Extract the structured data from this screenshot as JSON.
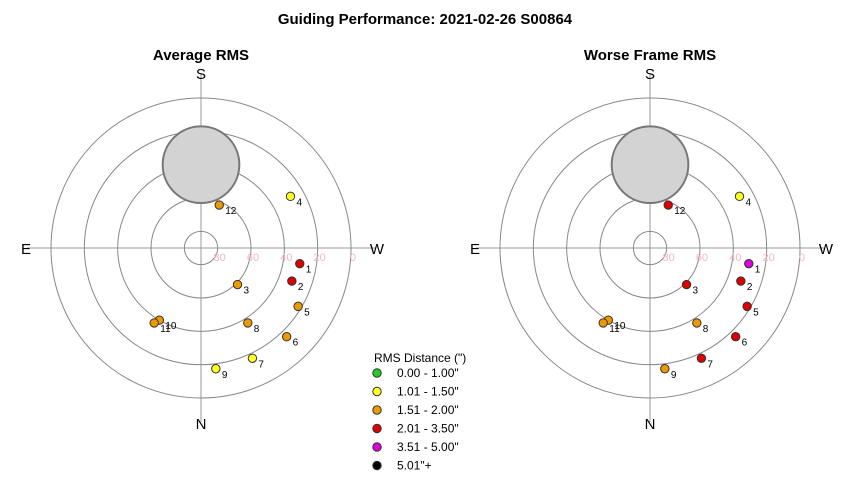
{
  "title": "Guiding Performance: 2021-02-26 S00864",
  "legend": {
    "title": "RMS Distance (\")",
    "entries": [
      {
        "label": "0.00 - 1.00\"",
        "color": "#22cc22"
      },
      {
        "label": "1.01 - 1.50\"",
        "color": "#ffff22"
      },
      {
        "label": "1.51 - 2.00\"",
        "color": "#ee9900"
      },
      {
        "label": "2.01 - 3.50\"",
        "color": "#dd0000"
      },
      {
        "label": "3.51 - 5.00\"",
        "color": "#dd00dd"
      },
      {
        "label": "5.01\"+",
        "color": "#000000"
      }
    ]
  },
  "chart_data": [
    {
      "type": "scatter",
      "subtype": "polar-sky",
      "title": "Average RMS",
      "directions": {
        "top": "S",
        "bottom": "N",
        "left": "E",
        "right": "W"
      },
      "altitude_ticks": [
        "80",
        "60",
        "40",
        "20",
        "0"
      ],
      "altitude_rings": [
        80,
        60,
        40,
        20,
        0
      ],
      "exclusion_zone": {
        "azimuth_deg": 0,
        "altitude_deg": 40,
        "radius_deg": 23,
        "color": "#d3d3d3"
      },
      "points": [
        {
          "label": "1",
          "azimuth_deg": 261,
          "altitude_deg": 30,
          "category": 3
        },
        {
          "label": "2",
          "azimuth_deg": 250,
          "altitude_deg": 32,
          "category": 3
        },
        {
          "label": "3",
          "azimuth_deg": 225,
          "altitude_deg": 59,
          "category": 2
        },
        {
          "label": "4",
          "azimuth_deg": 300,
          "altitude_deg": 28,
          "category": 1
        },
        {
          "label": "5",
          "azimuth_deg": 239,
          "altitude_deg": 22,
          "category": 2
        },
        {
          "label": "6",
          "azimuth_deg": 224,
          "altitude_deg": 16,
          "category": 2
        },
        {
          "label": "7",
          "azimuth_deg": 205,
          "altitude_deg": 17,
          "category": 1
        },
        {
          "label": "8",
          "azimuth_deg": 212,
          "altitude_deg": 37,
          "category": 2
        },
        {
          "label": "9",
          "azimuth_deg": 187,
          "altitude_deg": 17,
          "category": 1
        },
        {
          "label": "10",
          "azimuth_deg": 150,
          "altitude_deg": 40,
          "category": 2
        },
        {
          "label": "11",
          "azimuth_deg": 148,
          "altitude_deg": 37,
          "category": 2
        },
        {
          "label": "12",
          "azimuth_deg": 337,
          "altitude_deg": 62,
          "category": 2
        }
      ]
    },
    {
      "type": "scatter",
      "subtype": "polar-sky",
      "title": "Worse Frame RMS",
      "directions": {
        "top": "S",
        "bottom": "N",
        "left": "E",
        "right": "W"
      },
      "altitude_ticks": [
        "80",
        "60",
        "40",
        "20",
        "0"
      ],
      "altitude_rings": [
        80,
        60,
        40,
        20,
        0
      ],
      "exclusion_zone": {
        "azimuth_deg": 0,
        "altitude_deg": 40,
        "radius_deg": 23,
        "color": "#d3d3d3"
      },
      "points": [
        {
          "label": "1",
          "azimuth_deg": 261,
          "altitude_deg": 30,
          "category": 4
        },
        {
          "label": "2",
          "azimuth_deg": 250,
          "altitude_deg": 32,
          "category": 3
        },
        {
          "label": "3",
          "azimuth_deg": 225,
          "altitude_deg": 59,
          "category": 3
        },
        {
          "label": "4",
          "azimuth_deg": 300,
          "altitude_deg": 28,
          "category": 1
        },
        {
          "label": "5",
          "azimuth_deg": 239,
          "altitude_deg": 22,
          "category": 3
        },
        {
          "label": "6",
          "azimuth_deg": 224,
          "altitude_deg": 16,
          "category": 3
        },
        {
          "label": "7",
          "azimuth_deg": 205,
          "altitude_deg": 17,
          "category": 3
        },
        {
          "label": "8",
          "azimuth_deg": 212,
          "altitude_deg": 37,
          "category": 2
        },
        {
          "label": "9",
          "azimuth_deg": 187,
          "altitude_deg": 17,
          "category": 2
        },
        {
          "label": "10",
          "azimuth_deg": 150,
          "altitude_deg": 40,
          "category": 2
        },
        {
          "label": "11",
          "azimuth_deg": 148,
          "altitude_deg": 37,
          "category": 2
        },
        {
          "label": "12",
          "azimuth_deg": 337,
          "altitude_deg": 62,
          "category": 3
        }
      ]
    }
  ]
}
